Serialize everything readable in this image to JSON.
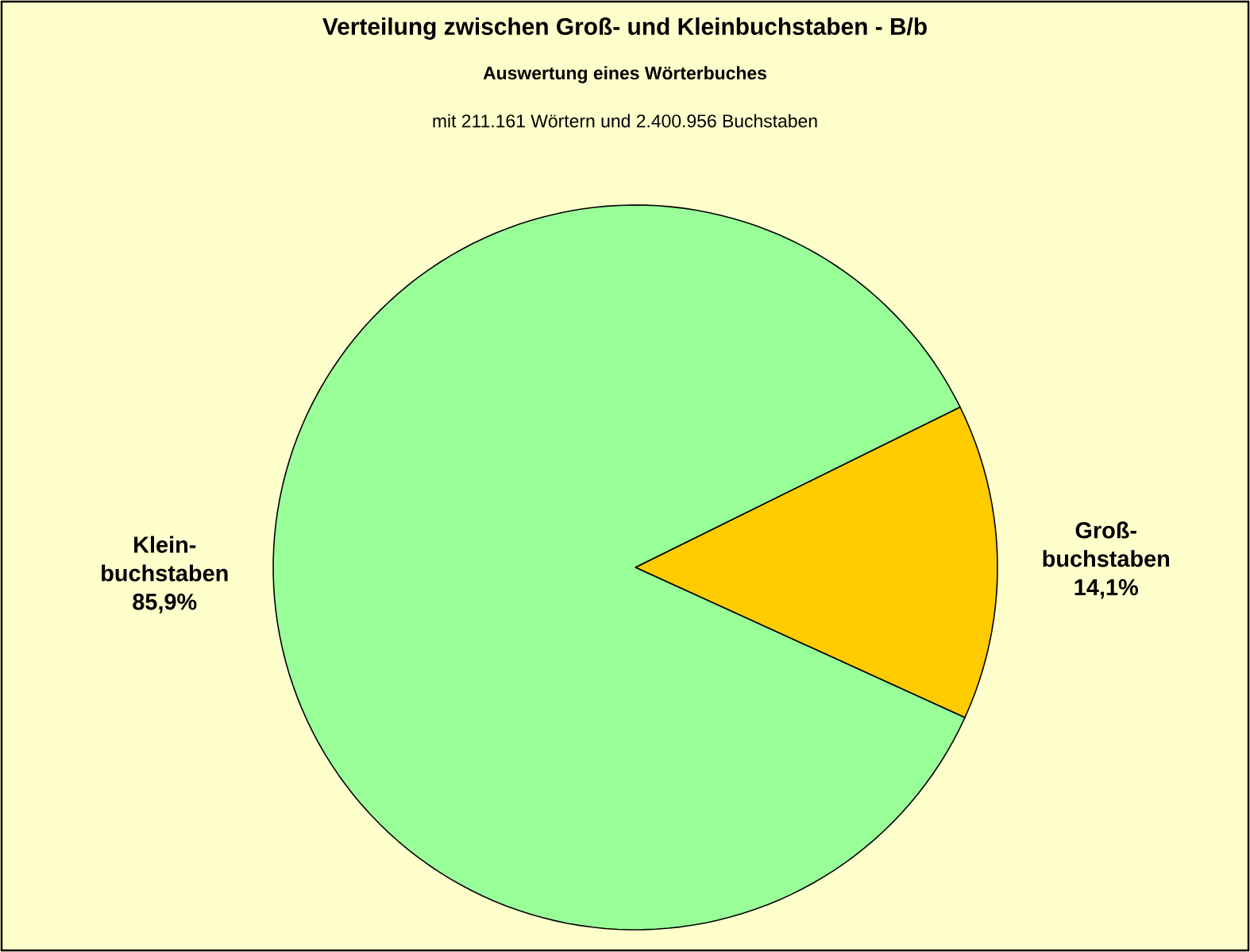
{
  "chart_data": {
    "type": "pie",
    "title": "Verteilung zwischen Groß- und Kleinbuchstaben - B/b",
    "subtitle": "Auswertung eines Wörterbuches",
    "annotations": [
      "mit 211.161 Wörtern und 2.400.956 Buchstaben"
    ],
    "categories": [
      "Groß-buchstaben",
      "Klein-buchstaben"
    ],
    "values": [
      14.1,
      85.9
    ],
    "value_labels": [
      "14,1%",
      "85,9%"
    ],
    "colors": [
      "#ffcc00",
      "#99ff99"
    ]
  }
}
